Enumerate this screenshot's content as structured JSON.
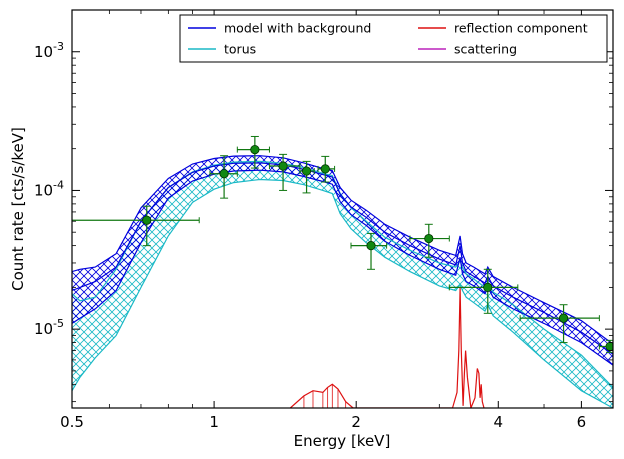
{
  "chart_data": {
    "type": "line",
    "xlabel": "Energy [keV]",
    "ylabel": "Count rate [cts/s/keV]",
    "x_scale": "log",
    "y_scale": "log",
    "xlim": [
      0.5,
      7.0
    ],
    "ylim": [
      2.7e-06,
      0.002
    ],
    "x_ticks": [
      {
        "value": 0.5,
        "label": "0.5"
      },
      {
        "value": 1,
        "label": "1"
      },
      {
        "value": 2,
        "label": "2"
      },
      {
        "value": 4,
        "label": "4"
      },
      {
        "value": 6,
        "label": "6"
      }
    ],
    "y_ticks": [
      {
        "value": 1e-05,
        "base": "10",
        "exp": "-5"
      },
      {
        "value": 0.0001,
        "base": "10",
        "exp": "-4"
      },
      {
        "value": 0.001,
        "base": "10",
        "exp": "-3"
      }
    ],
    "legend_position": "top-right",
    "legend": [
      {
        "name": "model with background",
        "color": "#0000dd"
      },
      {
        "name": "torus",
        "color": "#1ab9c6"
      },
      {
        "name": "reflection component",
        "color": "#dd1111"
      },
      {
        "name": "scattering",
        "color": "#bb22bb"
      }
    ],
    "series": [
      {
        "name": "model with background",
        "color": "#0000dd",
        "band": true,
        "x": [
          0.5,
          0.52,
          0.56,
          0.62,
          0.7,
          0.8,
          0.9,
          1.0,
          1.1,
          1.25,
          1.4,
          1.55,
          1.7,
          1.78,
          1.85,
          1.95,
          2.1,
          2.3,
          2.6,
          3.0,
          3.25,
          3.32,
          3.36,
          3.42,
          3.55,
          3.75,
          3.8,
          3.9,
          4.3,
          5.0,
          6.0,
          7.0
        ],
        "upper": [
          2.6e-05,
          2.7e-05,
          2.8e-05,
          3.5e-05,
          7.5e-05,
          0.000122,
          0.000155,
          0.00017,
          0.000177,
          0.000178,
          0.000172,
          0.000158,
          0.000144,
          0.000139,
          0.000105,
          8.5e-05,
          7.2e-05,
          5.7e-05,
          4.6e-05,
          3.7e-05,
          3.4e-05,
          4.7e-05,
          3.5e-05,
          3e-05,
          2.8e-05,
          2.5e-05,
          2.8e-05,
          2.4e-05,
          2e-05,
          1.55e-05,
          1.15e-05,
          7.8e-06
        ],
        "mid": [
          1.9e-05,
          2e-05,
          2.2e-05,
          2.8e-05,
          6e-05,
          0.000105,
          0.000135,
          0.00015,
          0.000157,
          0.000158,
          0.000153,
          0.000142,
          0.00013,
          0.000125,
          9.4e-05,
          7.6e-05,
          6.4e-05,
          5e-05,
          4e-05,
          3.2e-05,
          2.9e-05,
          4e-05,
          3e-05,
          2.6e-05,
          2.4e-05,
          2.15e-05,
          2.4e-05,
          2.05e-05,
          1.7e-05,
          1.32e-05,
          9.5e-06,
          6.6e-06
        ],
        "lower": [
          1.1e-05,
          1.2e-05,
          1.4e-05,
          1.9e-05,
          4.2e-05,
          8.8e-05,
          0.000117,
          0.000131,
          0.000138,
          0.00014,
          0.000136,
          0.000126,
          0.000116,
          0.000111,
          8.3e-05,
          6.7e-05,
          5.6e-05,
          4.3e-05,
          3.4e-05,
          2.7e-05,
          2.45e-05,
          3.3e-05,
          2.5e-05,
          2.2e-05,
          2.05e-05,
          1.8e-05,
          2e-05,
          1.7e-05,
          1.4e-05,
          1.1e-05,
          8e-06,
          5.5e-06
        ]
      },
      {
        "name": "torus",
        "color": "#1ab9c6",
        "band": true,
        "x": [
          0.5,
          0.52,
          0.56,
          0.62,
          0.7,
          0.8,
          0.9,
          1.0,
          1.1,
          1.25,
          1.4,
          1.55,
          1.7,
          1.78,
          1.85,
          1.95,
          2.1,
          2.3,
          2.6,
          3.0,
          3.25,
          3.32,
          3.36,
          3.42,
          3.55,
          3.75,
          3.8,
          3.9,
          4.3,
          5.0,
          6.0,
          7.0
        ],
        "upper": [
          1.8e-05,
          1.6e-05,
          1.7e-05,
          2.7e-05,
          6e-05,
          0.000105,
          0.000136,
          0.000152,
          0.00016,
          0.000162,
          0.000157,
          0.000146,
          0.000133,
          0.000128,
          9.5e-05,
          7.5e-05,
          6e-05,
          4.6e-05,
          3.7e-05,
          3e-05,
          2.8e-05,
          3.1e-05,
          2.8e-05,
          2.5e-05,
          2.3e-05,
          2e-05,
          2.2e-05,
          1.85e-05,
          1.5e-05,
          1e-05,
          6.5e-06,
          3.8e-06
        ],
        "lower": [
          3.6e-06,
          4.5e-06,
          6.2e-06,
          9e-06,
          2e-05,
          4.7e-05,
          8.2e-05,
          0.000102,
          0.000114,
          0.00012,
          0.000118,
          0.00011,
          0.0001,
          9.5e-05,
          6.8e-05,
          5.3e-05,
          4.2e-05,
          3.3e-05,
          2.6e-05,
          2.05e-05,
          1.9e-05,
          2.1e-05,
          1.9e-05,
          1.7e-05,
          1.55e-05,
          1.35e-05,
          1.5e-05,
          1.25e-05,
          9.5e-06,
          6e-06,
          3.6e-06,
          2.7e-06
        ]
      },
      {
        "name": "reflection component",
        "color": "#dd1111",
        "x": [
          1.45,
          1.55,
          1.62,
          1.7,
          1.74,
          1.78,
          1.83,
          1.9,
          1.97,
          3.2,
          3.27,
          3.3,
          3.32,
          3.34,
          3.37,
          3.39,
          3.41,
          3.44,
          3.5,
          3.57,
          3.61,
          3.64,
          3.66,
          3.68,
          3.7,
          3.73
        ],
        "y": [
          2.7e-06,
          3.3e-06,
          3.6e-06,
          3.5e-06,
          3.8e-06,
          4e-06,
          3.7e-06,
          3e-06,
          2.7e-06,
          2.7e-06,
          3.5e-06,
          7e-06,
          2e-05,
          7e-06,
          2.8e-06,
          4.8e-06,
          7e-06,
          4.5e-06,
          2.7e-06,
          3.2e-06,
          5.2e-06,
          4.8e-06,
          3.2e-06,
          4e-06,
          3e-06,
          2.7e-06
        ]
      },
      {
        "name": "scattering",
        "color": "#bb22bb",
        "x": [],
        "y": []
      }
    ],
    "data_points": {
      "name": "data",
      "color": "#117711",
      "points": [
        {
          "x": 0.72,
          "y": 6.1e-05,
          "xerr": [
            0.49,
            0.93
          ],
          "yerr": [
            4e-05,
            7.7e-05
          ]
        },
        {
          "x": 1.05,
          "y": 0.000132,
          "xerr": [
            0.98,
            1.12
          ],
          "yerr": [
            8.8e-05,
            0.000178
          ]
        },
        {
          "x": 1.22,
          "y": 0.000197,
          "xerr": [
            1.12,
            1.31
          ],
          "yerr": [
            0.000145,
            0.000245
          ]
        },
        {
          "x": 1.4,
          "y": 0.00015,
          "xerr": [
            1.31,
            1.52
          ],
          "yerr": [
            0.0001,
            0.000182
          ]
        },
        {
          "x": 1.57,
          "y": 0.000138,
          "xerr": [
            1.52,
            1.63
          ],
          "yerr": [
            9.6e-05,
            0.000162
          ]
        },
        {
          "x": 1.72,
          "y": 0.000143,
          "xerr": [
            1.66,
            1.8
          ],
          "yerr": [
            0.000115,
            0.000176
          ]
        },
        {
          "x": 2.15,
          "y": 4e-05,
          "xerr": [
            1.95,
            2.32
          ],
          "yerr": [
            2.7e-05,
            4.9e-05
          ]
        },
        {
          "x": 2.85,
          "y": 4.5e-05,
          "xerr": [
            2.6,
            3.15
          ],
          "yerr": [
            3.3e-05,
            5.7e-05
          ]
        },
        {
          "x": 3.8,
          "y": 2e-05,
          "xerr": [
            3.15,
            4.4
          ],
          "yerr": [
            1.3e-05,
            2.7e-05
          ]
        },
        {
          "x": 5.5,
          "y": 1.2e-05,
          "xerr": [
            4.45,
            6.55
          ],
          "yerr": [
            8e-06,
            1.5e-05
          ]
        },
        {
          "x": 6.9,
          "y": 7.5e-06,
          "xerr": [
            6.55,
            7.3
          ],
          "yerr": [
            6.8e-06,
            8.3e-06
          ]
        }
      ]
    }
  }
}
